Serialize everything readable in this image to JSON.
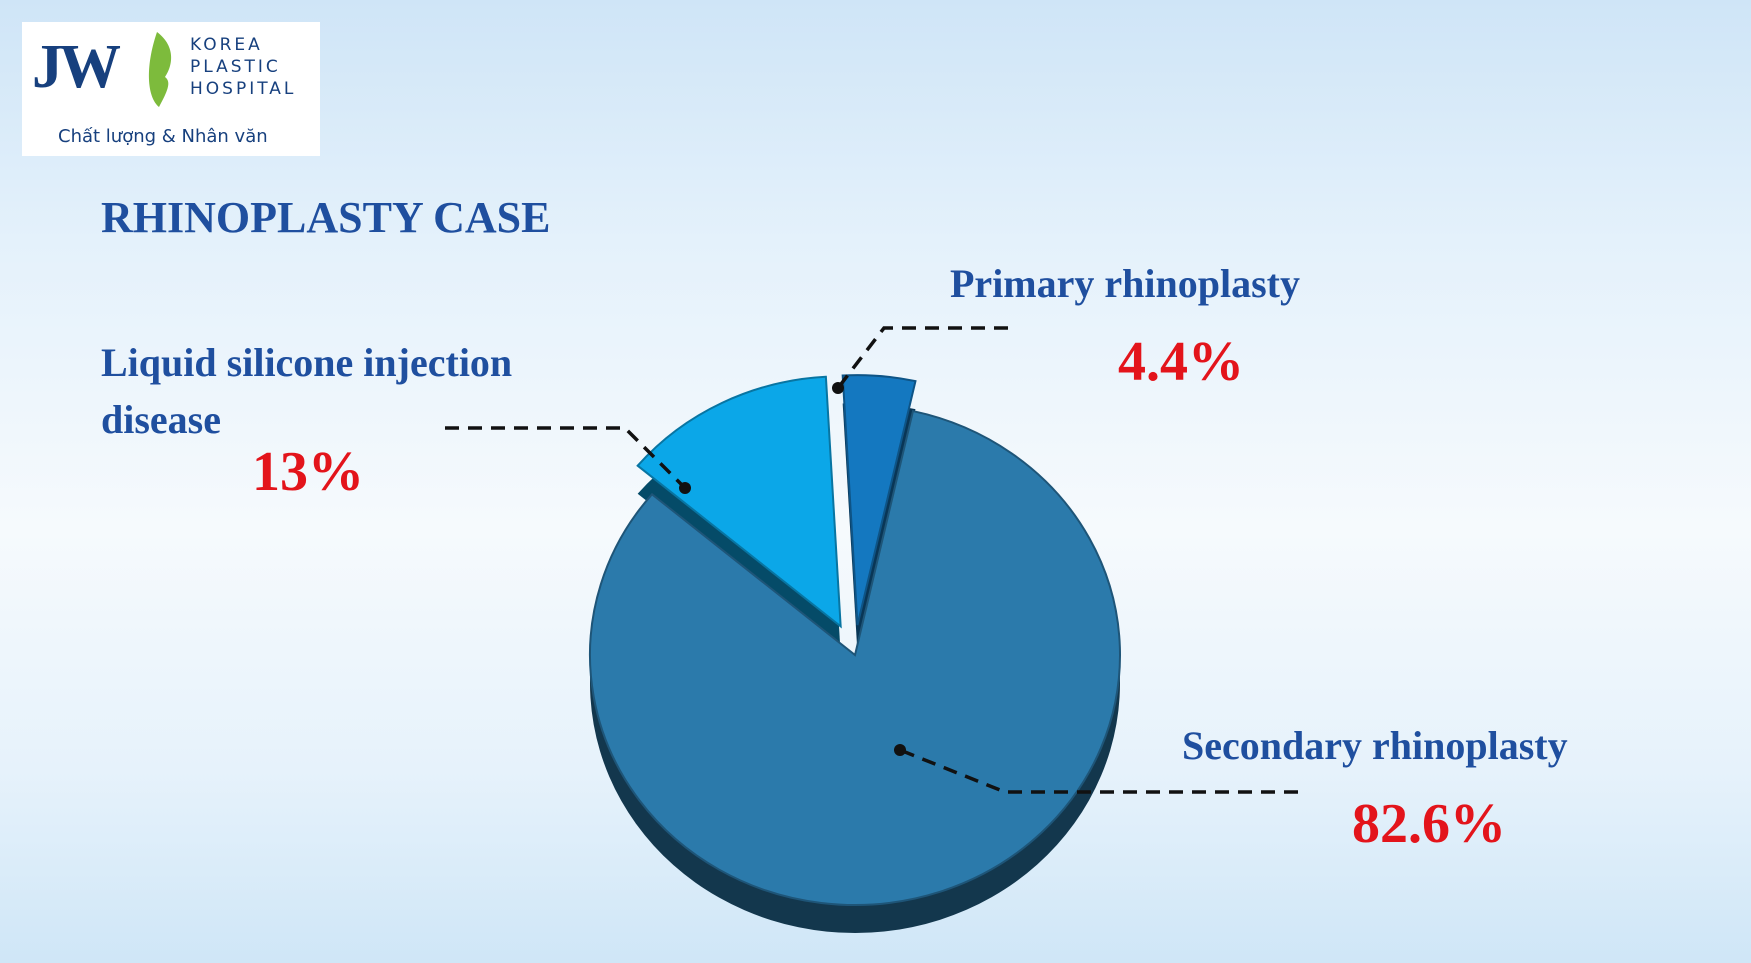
{
  "logo": {
    "mark": "JW",
    "line1": "KOREA",
    "line2": "PLASTIC",
    "line3": "HOSPITAL",
    "slogan": "Chất lượng & Nhân văn"
  },
  "chart_data": {
    "type": "pie",
    "title": "RHINOPLASTY CASE",
    "categories": [
      "Liquid silicone injection disease",
      "Primary rhinoplasty",
      "Secondary rhinoplasty"
    ],
    "values": [
      13,
      4.4,
      82.6
    ],
    "value_labels": [
      "13%",
      "4.4%",
      "82.6%"
    ],
    "colors": [
      "#0ba7e8",
      "#1478c0",
      "#2b7aab"
    ]
  }
}
